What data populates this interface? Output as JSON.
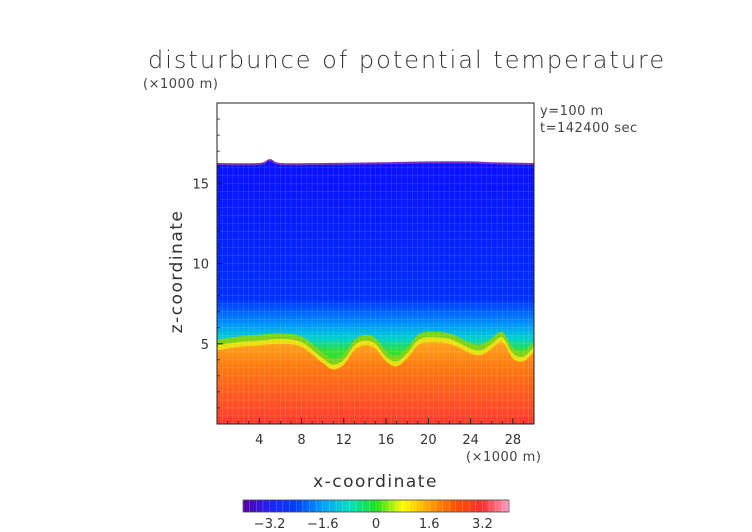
{
  "title": "disturbunce of potential temperature",
  "annotations": {
    "z_scale": "(×1000 m)",
    "x_scale": "(×1000 m)",
    "y_value": "y=100 m",
    "t_value": "t=142400 sec"
  },
  "chart_data": {
    "type": "heatmap",
    "title": "disturbunce of potential temperature",
    "xlabel": "x-coordinate",
    "ylabel": "z-coordinate",
    "xlim": [
      0,
      30
    ],
    "ylim": [
      0,
      20
    ],
    "x_ticks": [
      4,
      8,
      12,
      16,
      20,
      24,
      28
    ],
    "y_ticks": [
      5,
      10,
      15
    ],
    "field_top_z": [
      [
        0,
        16.2
      ],
      [
        4,
        16.2
      ],
      [
        5,
        16.45
      ],
      [
        6,
        16.2
      ],
      [
        10,
        16.2
      ],
      [
        16,
        16.25
      ],
      [
        20,
        16.3
      ],
      [
        24,
        16.3
      ],
      [
        26,
        16.25
      ],
      [
        30,
        16.2
      ]
    ],
    "interface_z": [
      [
        0,
        4.9
      ],
      [
        2,
        5.1
      ],
      [
        4,
        5.2
      ],
      [
        6,
        5.3
      ],
      [
        8,
        5.1
      ],
      [
        10,
        4.1
      ],
      [
        11,
        3.7
      ],
      [
        12,
        4.0
      ],
      [
        13,
        4.9
      ],
      [
        14,
        5.2
      ],
      [
        15,
        5.0
      ],
      [
        16,
        4.2
      ],
      [
        17,
        3.9
      ],
      [
        18,
        4.4
      ],
      [
        19,
        5.2
      ],
      [
        20,
        5.4
      ],
      [
        22,
        5.3
      ],
      [
        24,
        4.7
      ],
      [
        25,
        4.6
      ],
      [
        26,
        5.0
      ],
      [
        27,
        5.4
      ],
      [
        28,
        4.4
      ],
      [
        29,
        4.2
      ],
      [
        30,
        4.8
      ]
    ],
    "colorbar": {
      "range": [
        -4.0,
        4.0
      ],
      "tick_values": [
        -3.2,
        -1.6,
        0,
        1.6,
        3.2
      ],
      "tick_labels": [
        "−3.2",
        "−1.6",
        "0",
        "1.6",
        "3.2"
      ],
      "colors": [
        "#5a00a0",
        "#2020ff",
        "#0040ff",
        "#00a0ff",
        "#00e0c0",
        "#20e020",
        "#ffff00",
        "#ffa000",
        "#ff5000",
        "#ff3030",
        "#ffa0c0"
      ]
    },
    "grid": true
  }
}
